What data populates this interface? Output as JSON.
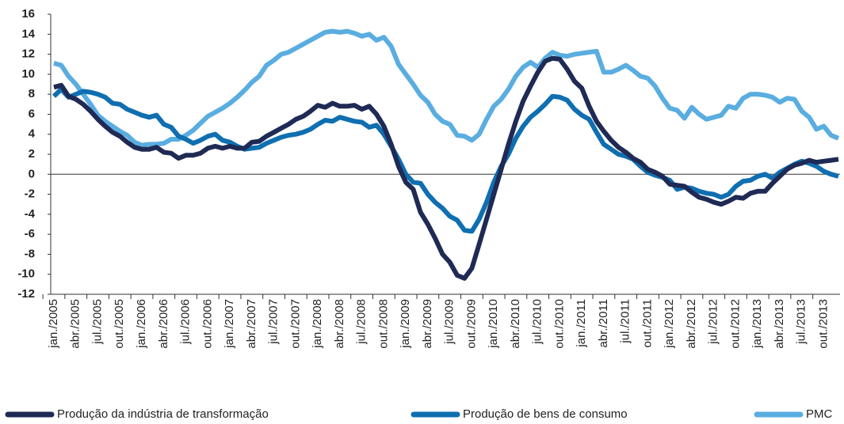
{
  "chart_data": {
    "type": "line",
    "categories": [
      "jan./2005",
      null,
      null,
      "abr./2005",
      null,
      null,
      "jul./2005",
      null,
      null,
      "out./2005",
      null,
      null,
      "jan./2006",
      null,
      null,
      "abr./2006",
      null,
      null,
      "jul./2006",
      null,
      null,
      "out./2006",
      null,
      null,
      "jan./2007",
      null,
      null,
      "abr./2007",
      null,
      null,
      "jul./2007",
      null,
      null,
      "out./2007",
      null,
      null,
      "jan./2008",
      null,
      null,
      "abr./2008",
      null,
      null,
      "jul./2008",
      null,
      null,
      "out./2008",
      null,
      null,
      "jan./2009",
      null,
      null,
      "abr./2009",
      null,
      null,
      "jul./2009",
      null,
      null,
      "out./2009",
      null,
      null,
      "jan./2010",
      null,
      null,
      "abr./2010",
      null,
      null,
      "jul./2010",
      null,
      null,
      "out./2010",
      null,
      null,
      "jan./2011",
      null,
      null,
      "abr./2011",
      null,
      null,
      "jul./2011",
      null,
      null,
      "out./2011",
      null,
      null,
      "jan./2012",
      null,
      null,
      "abr./2012",
      null,
      null,
      "jul./2012",
      null,
      null,
      "out./2012",
      null,
      null,
      "jan./2013",
      null,
      null,
      "abr./2013",
      null,
      null,
      "jul./2013",
      null,
      null,
      "out./2013",
      null,
      null
    ],
    "series": [
      {
        "name": "Produção da indústria de transformação",
        "color": "#1f2a55",
        "values": [
          8.7,
          8.9,
          7.8,
          7.5,
          7.0,
          6.3,
          5.5,
          4.8,
          4.2,
          3.8,
          3.2,
          2.7,
          2.5,
          2.5,
          2.7,
          2.2,
          2.1,
          1.6,
          1.9,
          1.9,
          2.1,
          2.6,
          2.8,
          2.6,
          2.8,
          2.6,
          2.6,
          3.2,
          3.3,
          3.8,
          4.2,
          4.6,
          5.0,
          5.5,
          5.8,
          6.3,
          6.9,
          6.7,
          7.1,
          6.8,
          6.8,
          6.9,
          6.5,
          6.8,
          6.0,
          4.8,
          3.0,
          0.8,
          -0.8,
          -1.5,
          -3.8,
          -5.0,
          -6.4,
          -8.0,
          -8.8,
          -10.1,
          -10.4,
          -9.4,
          -7.0,
          -4.5,
          -2.0,
          0.5,
          3.0,
          5.3,
          7.3,
          8.8,
          10.2,
          11.3,
          11.6,
          11.5,
          10.5,
          9.3,
          8.6,
          6.8,
          5.3,
          4.3,
          3.4,
          2.7,
          2.2,
          1.6,
          1.2,
          0.5,
          0.2,
          -0.2,
          -1.0,
          -1.1,
          -1.2,
          -1.8,
          -2.3,
          -2.5,
          -2.8,
          -3.0,
          -2.7,
          -2.3,
          -2.4,
          -1.9,
          -1.7,
          -1.7,
          -0.9,
          -0.2,
          0.5,
          0.9,
          1.1,
          1.4,
          1.2,
          1.3,
          1.4,
          1.5
        ]
      },
      {
        "name": "Produção de bens de consumo",
        "color": "#0f6fb0",
        "values": [
          7.8,
          8.5,
          7.7,
          8.0,
          8.3,
          8.2,
          8.0,
          7.7,
          7.1,
          7.0,
          6.5,
          6.2,
          5.9,
          5.7,
          5.9,
          5.0,
          4.7,
          3.8,
          3.5,
          3.1,
          3.4,
          3.8,
          4.0,
          3.4,
          3.2,
          2.8,
          2.5,
          2.6,
          2.7,
          3.1,
          3.4,
          3.7,
          3.9,
          4.0,
          4.2,
          4.5,
          5.0,
          5.4,
          5.3,
          5.7,
          5.5,
          5.3,
          5.2,
          4.7,
          4.9,
          4.0,
          2.8,
          1.5,
          0.0,
          -0.8,
          -0.9,
          -2.0,
          -2.8,
          -3.4,
          -4.2,
          -4.6,
          -5.6,
          -5.7,
          -4.5,
          -2.8,
          -0.8,
          0.8,
          2.0,
          3.6,
          4.8,
          5.7,
          6.3,
          7.0,
          7.8,
          7.7,
          7.4,
          6.5,
          5.9,
          5.5,
          4.2,
          3.0,
          2.5,
          2.0,
          1.8,
          1.5,
          0.8,
          0.2,
          -0.1,
          -0.3,
          -0.6,
          -1.5,
          -1.3,
          -1.4,
          -1.7,
          -1.9,
          -2.0,
          -2.3,
          -2.0,
          -1.2,
          -0.7,
          -0.6,
          -0.2,
          0.0,
          -0.4,
          0.2,
          0.6,
          1.0,
          1.3,
          1.1,
          0.8,
          0.3,
          0.0,
          -0.2
        ]
      },
      {
        "name": "PMC",
        "color": "#5aade0",
        "values": [
          11.1,
          10.9,
          9.8,
          9.0,
          8.0,
          7.0,
          5.9,
          5.3,
          4.8,
          4.3,
          3.9,
          3.2,
          2.9,
          3.0,
          3.0,
          3.1,
          3.5,
          3.5,
          3.9,
          4.4,
          5.1,
          5.8,
          6.2,
          6.6,
          7.1,
          7.7,
          8.4,
          9.2,
          9.8,
          10.9,
          11.4,
          12.0,
          12.2,
          12.6,
          13.0,
          13.4,
          13.8,
          14.2,
          14.3,
          14.2,
          14.3,
          14.1,
          13.8,
          14.0,
          13.4,
          13.7,
          12.8,
          11.0,
          10.0,
          9.0,
          7.9,
          7.2,
          6.0,
          5.3,
          5.0,
          3.9,
          3.8,
          3.4,
          4.0,
          5.5,
          6.8,
          7.5,
          8.5,
          9.8,
          10.7,
          11.2,
          10.7,
          11.6,
          12.2,
          11.9,
          11.8,
          12.0,
          12.1,
          12.2,
          12.3,
          10.2,
          10.2,
          10.5,
          10.9,
          10.4,
          9.8,
          9.6,
          8.8,
          7.6,
          6.6,
          6.4,
          5.6,
          6.7,
          6.0,
          5.5,
          5.7,
          5.9,
          6.8,
          6.6,
          7.6,
          8.0,
          8.0,
          7.9,
          7.7,
          7.2,
          7.6,
          7.5,
          6.3,
          5.7,
          4.5,
          4.8,
          3.9,
          3.6
        ]
      }
    ],
    "ylim": [
      -12,
      16
    ],
    "yticks": [
      -12,
      -10,
      -8,
      -6,
      -4,
      -2,
      0,
      2,
      4,
      6,
      8,
      10,
      12,
      14,
      16
    ],
    "grid": false,
    "legend": "bottom"
  }
}
